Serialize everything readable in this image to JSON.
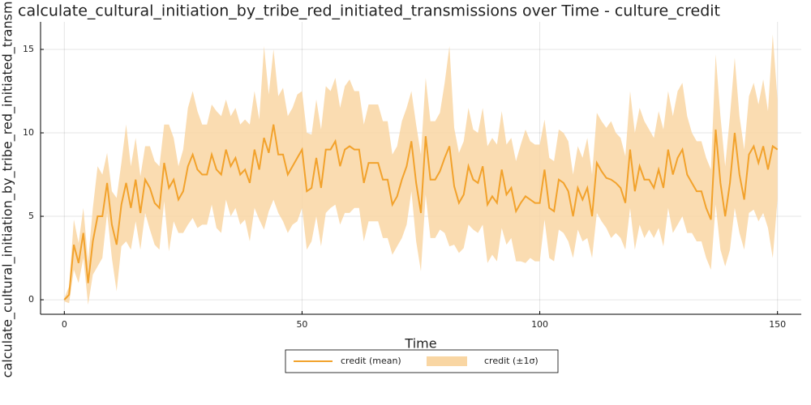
{
  "chart_data": {
    "type": "line",
    "title": "calculate_cultural_initiation_by_tribe_red_initiated_transmissions over Time - culture_credit",
    "x_label": "Time",
    "y_label": "calculate_cultural_initiation_by_tribe_red_initiated_transmissions",
    "x": [
      0,
      1,
      2,
      3,
      4,
      5,
      6,
      7,
      8,
      9,
      10,
      11,
      12,
      13,
      14,
      15,
      16,
      17,
      18,
      19,
      20,
      21,
      22,
      23,
      24,
      25,
      26,
      27,
      28,
      29,
      30,
      31,
      32,
      33,
      34,
      35,
      36,
      37,
      38,
      39,
      40,
      41,
      42,
      43,
      44,
      45,
      46,
      47,
      48,
      49,
      50,
      51,
      52,
      53,
      54,
      55,
      56,
      57,
      58,
      59,
      60,
      61,
      62,
      63,
      64,
      65,
      66,
      67,
      68,
      69,
      70,
      71,
      72,
      73,
      74,
      75,
      76,
      77,
      78,
      79,
      80,
      81,
      82,
      83,
      84,
      85,
      86,
      87,
      88,
      89,
      90,
      91,
      92,
      93,
      94,
      95,
      96,
      97,
      98,
      99,
      100,
      101,
      102,
      103,
      104,
      105,
      106,
      107,
      108,
      109,
      110,
      111,
      112,
      113,
      114,
      115,
      116,
      117,
      118,
      119,
      120,
      121,
      122,
      123,
      124,
      125,
      126,
      127,
      128,
      129,
      130,
      131,
      132,
      133,
      134,
      135,
      136,
      137,
      138,
      139,
      140,
      141,
      142,
      143,
      144,
      145,
      146,
      147,
      148,
      149,
      150
    ],
    "series": [
      {
        "name": "credit (mean)",
        "color": "#f2a22c",
        "values": [
          0,
          0.3,
          3.3,
          2.2,
          4,
          1,
          3.5,
          5,
          5,
          7,
          4.5,
          3.3,
          5.7,
          7,
          5.5,
          7.2,
          5.2,
          7.2,
          6.7,
          5.8,
          5.5,
          8.2,
          6.7,
          7.2,
          6,
          6.5,
          8,
          8.7,
          7.8,
          7.5,
          7.5,
          8.7,
          7.8,
          7.5,
          9,
          8,
          8.5,
          7.5,
          7.8,
          7,
          9,
          7.8,
          9.7,
          8.8,
          10.5,
          8.7,
          8.7,
          7.5,
          8,
          8.5,
          9,
          6.5,
          6.7,
          8.5,
          6.7,
          9,
          9,
          9.5,
          8,
          9,
          9.2,
          9,
          9,
          7,
          8.2,
          8.2,
          8.2,
          7.2,
          7.2,
          5.7,
          6.2,
          7.2,
          8,
          9.5,
          7,
          5.2,
          9.8,
          7.2,
          7.2,
          7.7,
          8.5,
          9.2,
          6.8,
          5.8,
          6.3,
          8,
          7.2,
          7,
          8,
          5.7,
          6.2,
          5.8,
          7.8,
          6.3,
          6.7,
          5.3,
          5.8,
          6.2,
          6,
          5.8,
          5.8,
          7.8,
          5.5,
          5.3,
          7.2,
          7,
          6.5,
          5,
          6.7,
          6,
          6.7,
          5,
          8.2,
          7.7,
          7.3,
          7.2,
          7,
          6.7,
          5.8,
          9,
          6.5,
          8,
          7.2,
          7.2,
          6.7,
          7.8,
          6.7,
          9,
          7.5,
          8.5,
          9,
          7.5,
          7,
          6.5,
          6.5,
          5.5,
          4.8,
          10.2,
          7,
          5,
          7,
          10,
          7.5,
          6,
          8.7,
          9.2,
          8.2,
          9.2,
          7.8,
          9.2,
          9
        ]
      },
      {
        "name": "credit (±1σ)",
        "color": "#f9d6a3",
        "values": [
          0.1,
          0.5,
          1.5,
          1.2,
          1.5,
          1.3,
          2,
          3,
          2.5,
          1.8,
          2,
          2.8,
          2.5,
          3.5,
          2.5,
          2.5,
          2.2,
          2,
          2.5,
          2.5,
          2.5,
          2.3,
          3.8,
          2.5,
          2,
          2.5,
          3.5,
          3.8,
          3.5,
          3,
          3,
          3,
          3.5,
          3.5,
          3,
          3,
          3,
          3,
          3,
          3.5,
          3.5,
          3,
          5.5,
          3.5,
          4.5,
          3.5,
          4,
          3.5,
          3.5,
          3.8,
          3.5,
          3.5,
          3.2,
          3.5,
          3.5,
          3.8,
          3.5,
          3.8,
          3.5,
          3.8,
          4,
          3.5,
          3.5,
          3.5,
          3.5,
          3.5,
          3.5,
          3.5,
          3.5,
          3,
          3,
          3.5,
          3.5,
          3,
          3.5,
          3.5,
          3.5,
          3.5,
          3.5,
          3.5,
          4.5,
          6,
          3.5,
          3,
          3.2,
          3.5,
          3,
          3,
          3.5,
          3.5,
          3.5,
          3.5,
          3.5,
          3,
          3,
          3,
          3.5,
          4,
          3.5,
          3.5,
          3.5,
          3,
          3,
          3,
          3,
          3,
          3,
          2.5,
          2.5,
          2.5,
          3,
          2.5,
          3,
          3,
          3,
          3.5,
          3,
          3,
          2.8,
          3.5,
          3.5,
          3.5,
          3.5,
          3,
          3,
          3.5,
          3.5,
          3.5,
          3.5,
          4,
          4,
          3.5,
          3,
          3,
          3,
          3,
          3,
          4.5,
          4,
          3,
          4,
          4.5,
          3.5,
          3,
          3.5,
          3.8,
          3.5,
          4,
          3.5,
          6.7,
          3
        ]
      }
    ],
    "xlim": [
      -5,
      155
    ],
    "ylim": [
      -0.87,
      16.65
    ],
    "xticks": [
      0,
      50,
      100,
      150
    ],
    "yticks": [
      0,
      5,
      10,
      15
    ],
    "grid": true,
    "legend": "bottom"
  }
}
